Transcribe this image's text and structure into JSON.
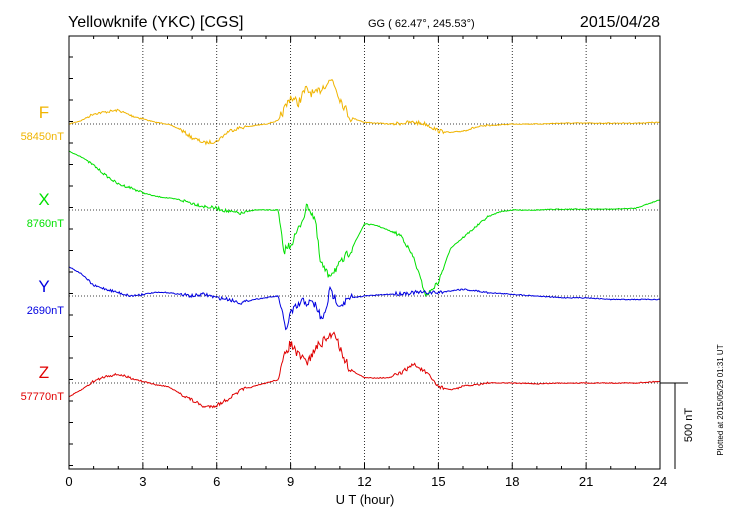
{
  "chart_data": {
    "type": "line",
    "title": "Yellowknife (YKC)  [CGS]",
    "coords": "GG ( 62.47°, 245.53°)",
    "date": "2015/04/28",
    "xlabel": "U T (hour)",
    "xlim": [
      0,
      24
    ],
    "xticks": [
      "0",
      "3",
      "6",
      "9",
      "12",
      "15",
      "18",
      "21",
      "24"
    ],
    "scale_label": "500 nT",
    "plotted_note": "Plotted at 2015/05/29 01:31  UT",
    "grid": true,
    "series": [
      {
        "name": "F",
        "baseline_label": "58450nT",
        "color": "#f0b400",
        "offset_nT": [
          [
            0.0,
            0
          ],
          [
            0.5,
            20
          ],
          [
            1.0,
            60
          ],
          [
            1.5,
            70
          ],
          [
            2.0,
            80
          ],
          [
            2.5,
            50
          ],
          [
            3.0,
            30
          ],
          [
            3.5,
            10
          ],
          [
            4.0,
            0
          ],
          [
            4.5,
            -30
          ],
          [
            5.0,
            -80
          ],
          [
            5.5,
            -110
          ],
          [
            6.0,
            -100
          ],
          [
            6.5,
            -40
          ],
          [
            7.0,
            -20
          ],
          [
            7.5,
            -10
          ],
          [
            8.0,
            0
          ],
          [
            8.5,
            20
          ],
          [
            8.8,
            100
          ],
          [
            9.0,
            160
          ],
          [
            9.3,
            120
          ],
          [
            9.6,
            200
          ],
          [
            10.0,
            170
          ],
          [
            10.4,
            230
          ],
          [
            10.7,
            260
          ],
          [
            11.0,
            150
          ],
          [
            11.4,
            40
          ],
          [
            12.0,
            10
          ],
          [
            13.0,
            0
          ],
          [
            14.0,
            10
          ],
          [
            14.5,
            0
          ],
          [
            15.0,
            -40
          ],
          [
            15.5,
            -50
          ],
          [
            16.0,
            -40
          ],
          [
            16.5,
            -20
          ],
          [
            17.0,
            -10
          ],
          [
            18.0,
            0
          ],
          [
            19.0,
            0
          ],
          [
            20.0,
            5
          ],
          [
            21.0,
            5
          ],
          [
            22.0,
            5
          ],
          [
            23.0,
            5
          ],
          [
            24.0,
            10
          ]
        ]
      },
      {
        "name": "X",
        "baseline_label": "8760nT",
        "color": "#00e000",
        "offset_nT": [
          [
            0.0,
            340
          ],
          [
            0.5,
            310
          ],
          [
            1.0,
            260
          ],
          [
            1.5,
            200
          ],
          [
            2.0,
            150
          ],
          [
            2.5,
            130
          ],
          [
            3.0,
            100
          ],
          [
            3.5,
            80
          ],
          [
            4.0,
            70
          ],
          [
            4.5,
            60
          ],
          [
            5.0,
            40
          ],
          [
            5.5,
            20
          ],
          [
            6.0,
            10
          ],
          [
            6.5,
            -10
          ],
          [
            7.0,
            -20
          ],
          [
            7.5,
            0
          ],
          [
            8.0,
            0
          ],
          [
            8.5,
            0
          ],
          [
            8.7,
            -240
          ],
          [
            9.0,
            -200
          ],
          [
            9.3,
            -120
          ],
          [
            9.7,
            30
          ],
          [
            10.0,
            -60
          ],
          [
            10.2,
            -300
          ],
          [
            10.5,
            -380
          ],
          [
            11.0,
            -320
          ],
          [
            11.5,
            -220
          ],
          [
            12.0,
            -80
          ],
          [
            12.5,
            -90
          ],
          [
            13.0,
            -120
          ],
          [
            13.5,
            -150
          ],
          [
            14.0,
            -280
          ],
          [
            14.5,
            -500
          ],
          [
            15.0,
            -420
          ],
          [
            15.5,
            -220
          ],
          [
            16.0,
            -160
          ],
          [
            16.5,
            -100
          ],
          [
            17.0,
            -40
          ],
          [
            17.5,
            -10
          ],
          [
            18.0,
            0
          ],
          [
            19.0,
            0
          ],
          [
            20.0,
            5
          ],
          [
            21.0,
            5
          ],
          [
            22.0,
            5
          ],
          [
            23.0,
            10
          ],
          [
            24.0,
            60
          ]
        ]
      },
      {
        "name": "Y",
        "baseline_label": "2690nT",
        "color": "#0000e0",
        "offset_nT": [
          [
            0.0,
            170
          ],
          [
            0.5,
            130
          ],
          [
            1.0,
            60
          ],
          [
            1.5,
            40
          ],
          [
            2.0,
            20
          ],
          [
            2.5,
            0
          ],
          [
            3.0,
            10
          ],
          [
            3.5,
            20
          ],
          [
            4.0,
            20
          ],
          [
            4.5,
            10
          ],
          [
            5.0,
            0
          ],
          [
            5.5,
            10
          ],
          [
            6.0,
            -10
          ],
          [
            6.5,
            -20
          ],
          [
            7.0,
            -40
          ],
          [
            7.5,
            -20
          ],
          [
            8.0,
            -10
          ],
          [
            8.5,
            0
          ],
          [
            8.8,
            -200
          ],
          [
            9.0,
            -100
          ],
          [
            9.5,
            -30
          ],
          [
            10.0,
            -50
          ],
          [
            10.3,
            -150
          ],
          [
            10.6,
            30
          ],
          [
            11.0,
            -50
          ],
          [
            11.5,
            -10
          ],
          [
            12.0,
            0
          ],
          [
            13.0,
            10
          ],
          [
            14.0,
            20
          ],
          [
            15.0,
            20
          ],
          [
            16.0,
            40
          ],
          [
            16.5,
            30
          ],
          [
            17.0,
            20
          ],
          [
            18.0,
            10
          ],
          [
            19.0,
            0
          ],
          [
            20.0,
            -10
          ],
          [
            21.0,
            -10
          ],
          [
            22.0,
            -20
          ],
          [
            23.0,
            -20
          ],
          [
            24.0,
            -20
          ]
        ]
      },
      {
        "name": "Z",
        "baseline_label": "57770nT",
        "color": "#e00000",
        "offset_nT": [
          [
            0.0,
            -80
          ],
          [
            0.5,
            -40
          ],
          [
            1.0,
            10
          ],
          [
            1.5,
            40
          ],
          [
            2.0,
            50
          ],
          [
            2.5,
            30
          ],
          [
            3.0,
            10
          ],
          [
            3.5,
            -10
          ],
          [
            4.0,
            -20
          ],
          [
            4.5,
            -60
          ],
          [
            5.0,
            -100
          ],
          [
            5.5,
            -140
          ],
          [
            6.0,
            -130
          ],
          [
            6.5,
            -90
          ],
          [
            7.0,
            -40
          ],
          [
            7.5,
            -20
          ],
          [
            8.0,
            0
          ],
          [
            8.5,
            20
          ],
          [
            8.8,
            180
          ],
          [
            9.0,
            230
          ],
          [
            9.3,
            160
          ],
          [
            9.7,
            120
          ],
          [
            10.0,
            200
          ],
          [
            10.4,
            250
          ],
          [
            10.8,
            300
          ],
          [
            11.0,
            200
          ],
          [
            11.4,
            80
          ],
          [
            12.0,
            30
          ],
          [
            12.5,
            30
          ],
          [
            13.0,
            30
          ],
          [
            13.5,
            60
          ],
          [
            14.0,
            110
          ],
          [
            14.5,
            60
          ],
          [
            15.0,
            -20
          ],
          [
            15.5,
            -40
          ],
          [
            16.0,
            -20
          ],
          [
            17.0,
            0
          ],
          [
            18.0,
            0
          ],
          [
            19.0,
            -5
          ],
          [
            20.0,
            0
          ],
          [
            21.0,
            0
          ],
          [
            22.0,
            0
          ],
          [
            23.0,
            0
          ],
          [
            24.0,
            10
          ]
        ]
      }
    ]
  }
}
